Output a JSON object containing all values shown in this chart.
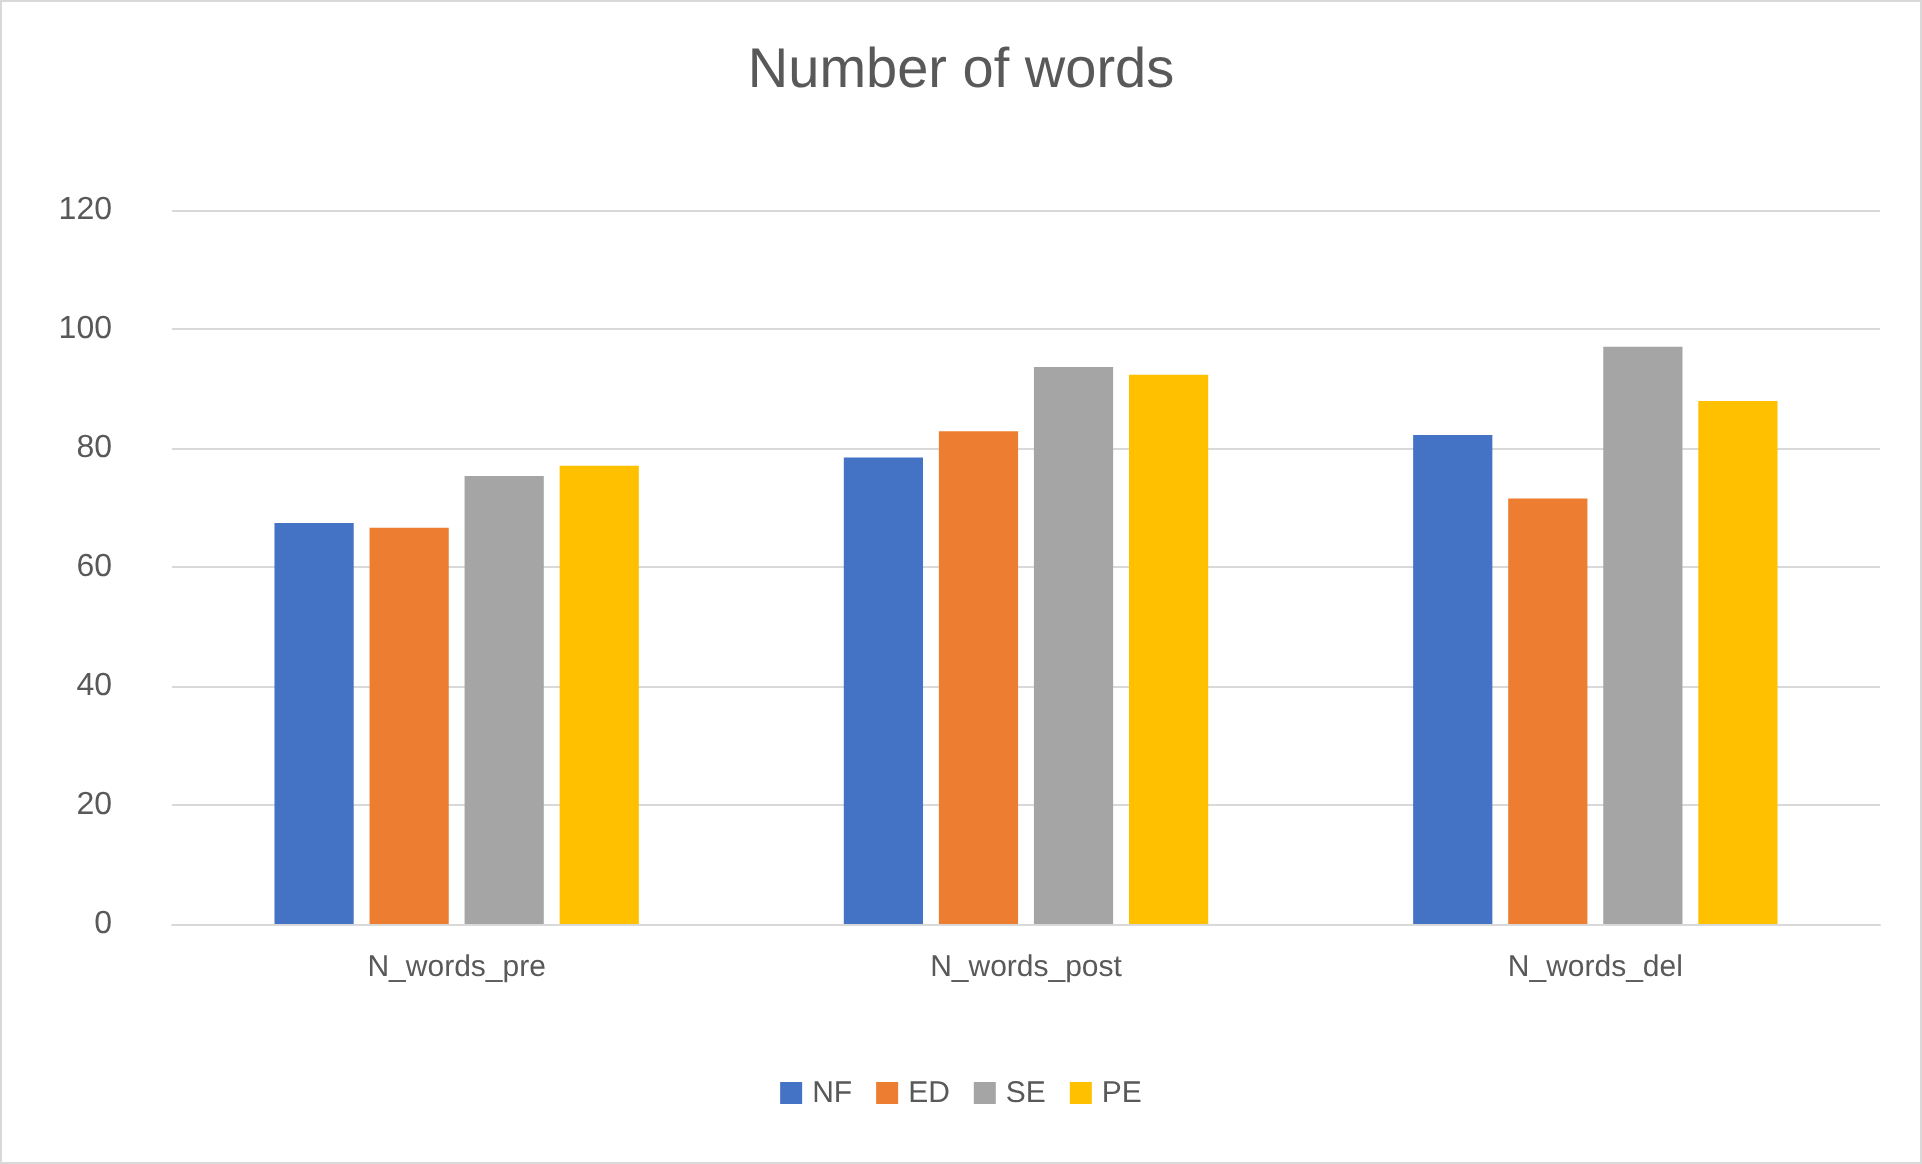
{
  "chart_data": {
    "type": "bar",
    "title": "Number of words",
    "categories": [
      "N_words_pre",
      "N_words_post",
      "N_words_del"
    ],
    "series": [
      {
        "name": "NF",
        "color": "#4472c4",
        "values": [
          67.4,
          78.4,
          82.2
        ]
      },
      {
        "name": "ED",
        "color": "#ed7d31",
        "values": [
          66.6,
          82.8,
          71.5
        ]
      },
      {
        "name": "SE",
        "color": "#a5a5a5",
        "values": [
          75.3,
          93.6,
          97
        ]
      },
      {
        "name": "PE",
        "color": "#ffc000",
        "values": [
          77,
          92.3,
          87.9
        ]
      }
    ],
    "ylim": [
      0,
      120
    ],
    "yticks": [
      0,
      20,
      40,
      60,
      80,
      100,
      120
    ],
    "grid": "y",
    "legend": "bottom"
  }
}
